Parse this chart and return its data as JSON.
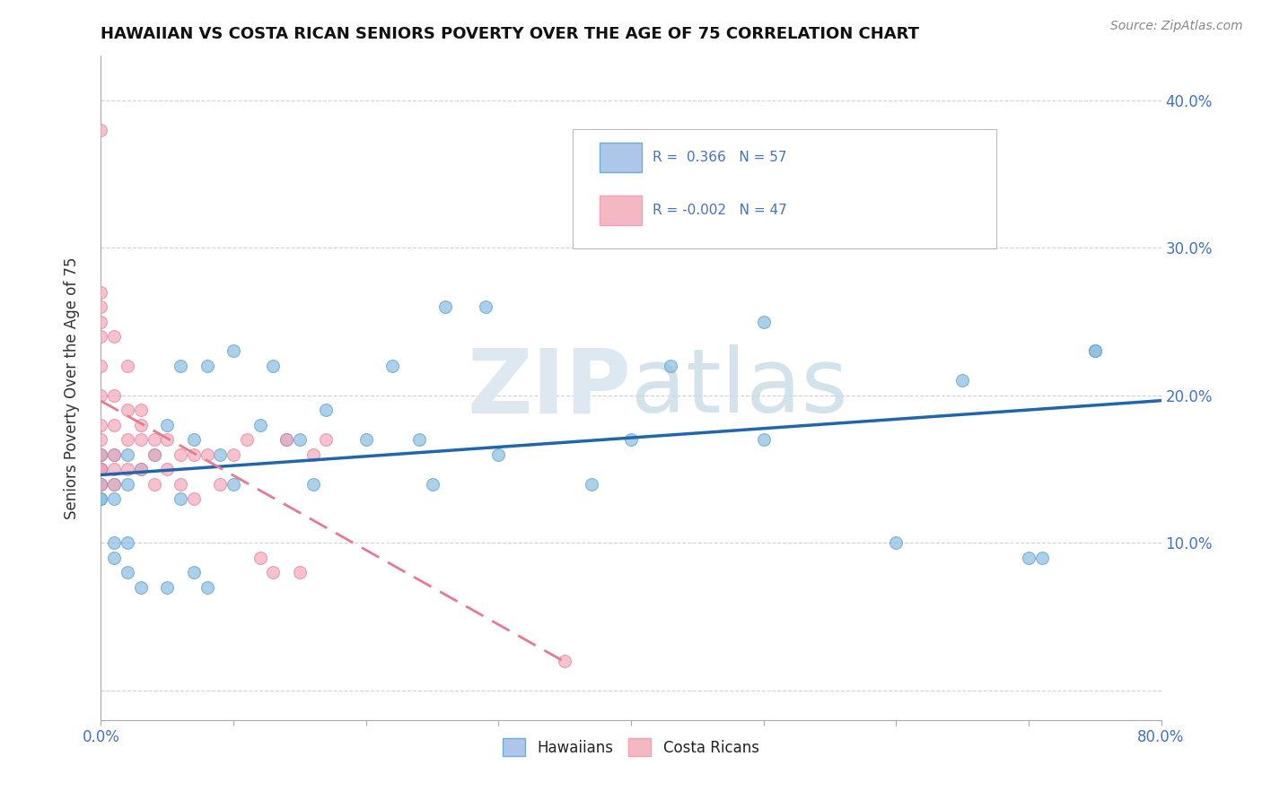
{
  "title": "HAWAIIAN VS COSTA RICAN SENIORS POVERTY OVER THE AGE OF 75 CORRELATION CHART",
  "source": "Source: ZipAtlas.com",
  "ylabel": "Seniors Poverty Over the Age of 75",
  "xlim": [
    0.0,
    0.8
  ],
  "ylim": [
    -0.02,
    0.43
  ],
  "xticks": [
    0.0,
    0.1,
    0.2,
    0.3,
    0.4,
    0.5,
    0.6,
    0.7,
    0.8
  ],
  "xticklabels": [
    "0.0%",
    "",
    "",
    "",
    "",
    "",
    "",
    "",
    "80.0%"
  ],
  "yticks": [
    0.0,
    0.1,
    0.2,
    0.3,
    0.4
  ],
  "yticklabels_right": [
    "",
    "10.0%",
    "20.0%",
    "30.0%",
    "40.0%"
  ],
  "hawaiian_color": "#89bde0",
  "costarican_color": "#f4a8b8",
  "line_hawaiian": "#2166ac",
  "line_costarican": "#e87a90",
  "watermark_color": "#d8e8f0",
  "hawaiian_x": [
    0.0,
    0.0,
    0.0,
    0.0,
    0.0,
    0.0,
    0.0,
    0.0,
    0.0,
    0.0,
    0.01,
    0.01,
    0.01,
    0.01,
    0.01,
    0.02,
    0.02,
    0.02,
    0.02,
    0.03,
    0.03,
    0.04,
    0.05,
    0.05,
    0.06,
    0.06,
    0.07,
    0.07,
    0.08,
    0.08,
    0.09,
    0.1,
    0.1,
    0.12,
    0.13,
    0.14,
    0.15,
    0.16,
    0.17,
    0.2,
    0.22,
    0.24,
    0.25,
    0.26,
    0.29,
    0.3,
    0.37,
    0.4,
    0.43,
    0.5,
    0.5,
    0.6,
    0.65,
    0.7,
    0.71,
    0.75,
    0.75
  ],
  "hawaiian_y": [
    0.13,
    0.13,
    0.14,
    0.14,
    0.15,
    0.15,
    0.15,
    0.15,
    0.16,
    0.16,
    0.09,
    0.1,
    0.13,
    0.14,
    0.16,
    0.08,
    0.1,
    0.14,
    0.16,
    0.07,
    0.15,
    0.16,
    0.07,
    0.18,
    0.13,
    0.22,
    0.08,
    0.17,
    0.07,
    0.22,
    0.16,
    0.14,
    0.23,
    0.18,
    0.22,
    0.17,
    0.17,
    0.14,
    0.19,
    0.17,
    0.22,
    0.17,
    0.14,
    0.26,
    0.26,
    0.16,
    0.14,
    0.17,
    0.22,
    0.25,
    0.17,
    0.1,
    0.21,
    0.09,
    0.09,
    0.23,
    0.23
  ],
  "costarican_x": [
    0.0,
    0.0,
    0.0,
    0.0,
    0.0,
    0.0,
    0.0,
    0.0,
    0.0,
    0.0,
    0.0,
    0.0,
    0.0,
    0.01,
    0.01,
    0.01,
    0.01,
    0.01,
    0.01,
    0.02,
    0.02,
    0.02,
    0.02,
    0.03,
    0.03,
    0.03,
    0.03,
    0.04,
    0.04,
    0.04,
    0.05,
    0.05,
    0.06,
    0.06,
    0.07,
    0.07,
    0.08,
    0.09,
    0.1,
    0.11,
    0.12,
    0.13,
    0.14,
    0.15,
    0.16,
    0.17,
    0.35
  ],
  "costarican_y": [
    0.38,
    0.27,
    0.26,
    0.25,
    0.24,
    0.22,
    0.2,
    0.18,
    0.17,
    0.16,
    0.15,
    0.14,
    0.15,
    0.24,
    0.2,
    0.18,
    0.16,
    0.15,
    0.14,
    0.22,
    0.19,
    0.17,
    0.15,
    0.19,
    0.18,
    0.17,
    0.15,
    0.17,
    0.16,
    0.14,
    0.17,
    0.15,
    0.16,
    0.14,
    0.16,
    0.13,
    0.16,
    0.14,
    0.16,
    0.17,
    0.09,
    0.08,
    0.17,
    0.08,
    0.16,
    0.17,
    0.02
  ]
}
